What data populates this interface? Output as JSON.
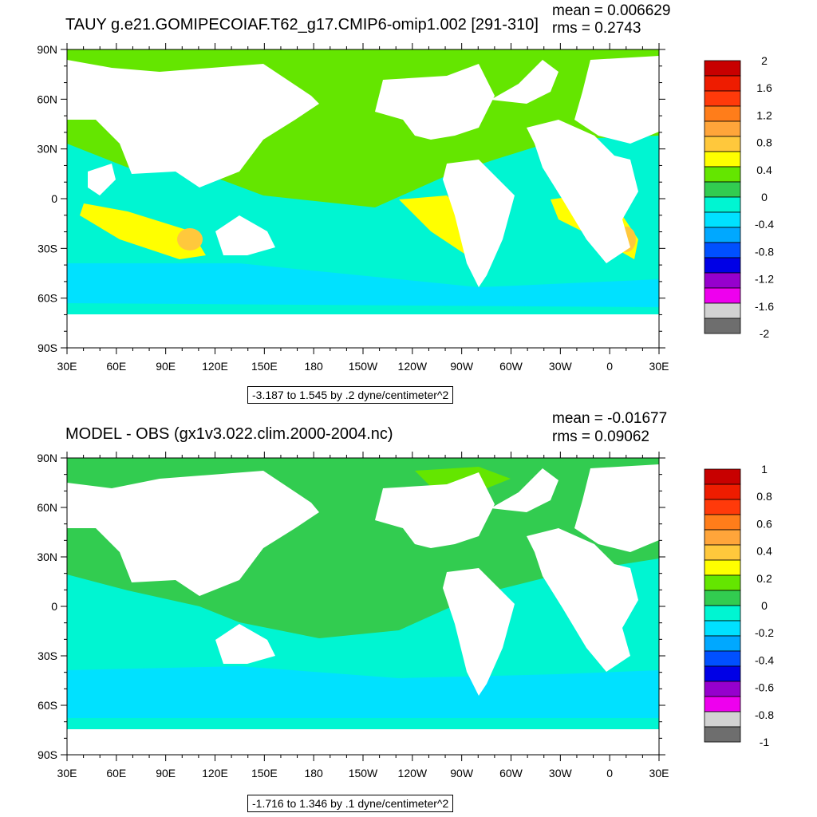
{
  "panels": [
    {
      "title": "TAUY g.e21.GOMIPECOIAF.T62_g17.CMIP6-omip1.002 [291-310]",
      "mean": "mean = 0.006629",
      "rms": "rms = 0.2743",
      "range": "-3.187 to 1.545 by .2 dyne/centimeter^2",
      "colorbar_labels": [
        "2",
        "1.6",
        "1.2",
        "0.8",
        "0.4",
        "0",
        "-0.4",
        "-0.8",
        "-1.2",
        "-1.6",
        "-2"
      ],
      "colorbar_colors": [
        "#c80000",
        "#ee1c00",
        "#ff3a0a",
        "#ff7d1a",
        "#ffa53a",
        "#ffc83c",
        "#ffff00",
        "#64e600",
        "#32cc50",
        "#00f5d2",
        "#00e1ff",
        "#00a8ff",
        "#0050ff",
        "#0000e6",
        "#9600cd",
        "#ee00ee",
        "#d2d2d2",
        "#6e6e6e"
      ],
      "fields": {
        "ocean": "#00f5d2",
        "north": "#64e600",
        "southband": "#00e1ff",
        "subtrop": "#ffff00",
        "strong": "#ffc83c"
      }
    },
    {
      "title": "MODEL - OBS (gx1v3.022.clim.2000-2004.nc)",
      "mean": "mean = -0.01677",
      "rms": "rms = 0.09062",
      "range": "-1.716 to 1.346 by .1 dyne/centimeter^2",
      "colorbar_labels": [
        "1",
        "0.8",
        "0.6",
        "0.4",
        "0.2",
        "0",
        "-0.2",
        "-0.4",
        "-0.6",
        "-0.8",
        "-1"
      ],
      "colorbar_colors": [
        "#c80000",
        "#ee1c00",
        "#ff3a0a",
        "#ff7d1a",
        "#ffa53a",
        "#ffc83c",
        "#ffff00",
        "#64e600",
        "#32cc50",
        "#00f5d2",
        "#00e1ff",
        "#00a8ff",
        "#0050ff",
        "#0000e6",
        "#9600cd",
        "#ee00ee",
        "#d2d2d2",
        "#6e6e6e"
      ],
      "fields": {
        "ocean": "#00f5d2",
        "north": "#32cc50",
        "southband": "#00e1ff",
        "subtrop": "#32cc50",
        "strong": "#64e600"
      }
    }
  ],
  "axes": {
    "lat_labels": [
      "90N",
      "60N",
      "30N",
      "0",
      "30S",
      "60S",
      "90S"
    ],
    "lon_labels": [
      "30E",
      "60E",
      "90E",
      "120E",
      "150E",
      "180",
      "150W",
      "120W",
      "90W",
      "60W",
      "30W",
      "0",
      "30E"
    ]
  }
}
